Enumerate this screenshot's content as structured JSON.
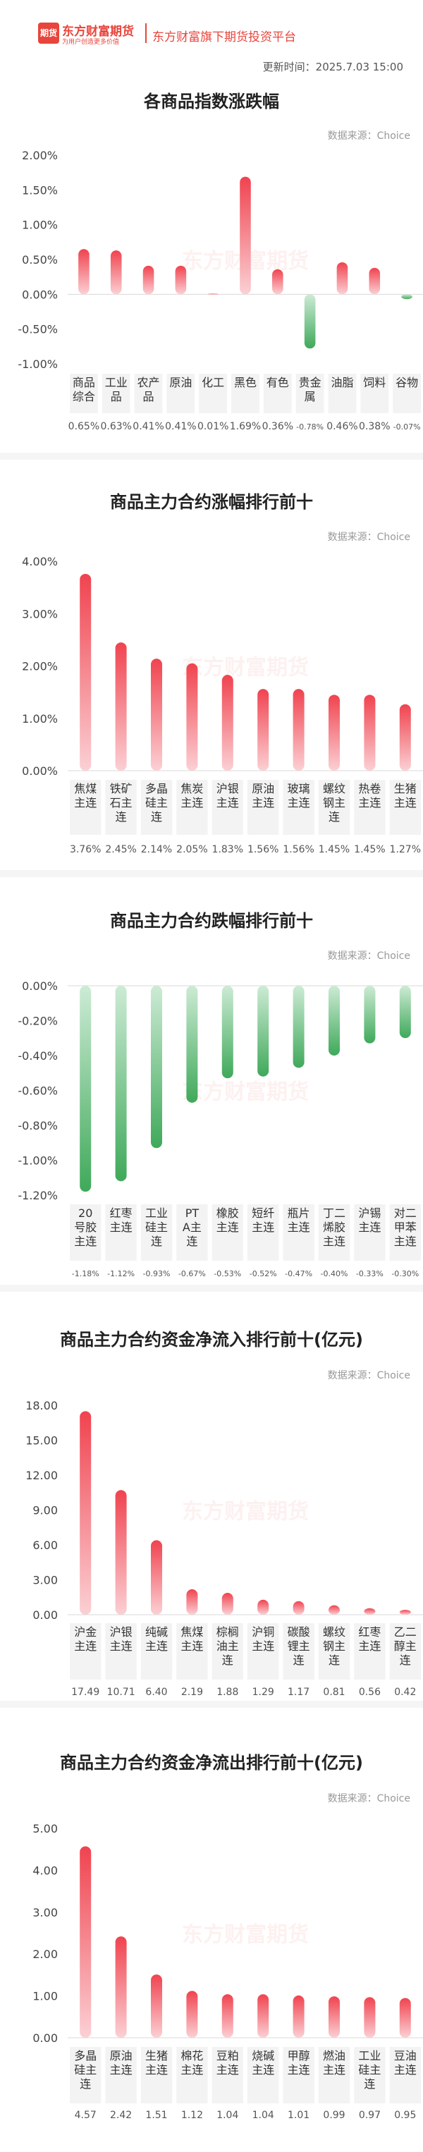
{
  "header": {
    "logo_text": "期货",
    "brand": "东方财富期货",
    "brand_sub": "为用户创造更多价值",
    "platform": "东方财富旗下期货投资平台",
    "updated": "更新时间：2025.7.03 15:00"
  },
  "colors": {
    "up": "#f0434f",
    "down": "#3fa95a",
    "label_bg": "#f3f3f3"
  },
  "chart_data": [
    {
      "type": "bar",
      "title": "各商品指数涨跌幅",
      "source": "数据来源：Choice",
      "watermark": "东方财富期货",
      "categories": [
        "商品综合",
        "工业品",
        "农产品",
        "原油",
        "化工",
        "黑色",
        "有色",
        "贵金属",
        "油脂",
        "饲料",
        "谷物"
      ],
      "value_labels": [
        "0.65%",
        "0.63%",
        "0.41%",
        "0.41%",
        "0.01%",
        "1.69%",
        "0.36%",
        "-0.78%",
        "0.46%",
        "0.38%",
        "-0.07%"
      ],
      "values": [
        0.65,
        0.63,
        0.41,
        0.41,
        0.01,
        1.69,
        0.36,
        -0.78,
        0.46,
        0.38,
        -0.07
      ],
      "ylim": [
        -1.0,
        2.0
      ],
      "yticks": [
        2.0,
        1.5,
        1.0,
        0.5,
        0.0,
        -0.5,
        -1.0
      ],
      "ytick_labels": [
        "2.00%",
        "1.50%",
        "1.00%",
        "0.50%",
        "0.00%",
        "-0.50%",
        "-1.00%"
      ],
      "grid": false
    },
    {
      "type": "bar",
      "title": "商品主力合约涨幅排行前十",
      "source": "数据来源：Choice",
      "watermark": "东方财富期货",
      "categories": [
        "焦煤主连",
        "铁矿石主连",
        "多晶硅主连",
        "焦炭主连",
        "沪银主连",
        "原油主连",
        "玻璃主连",
        "螺纹钢主连",
        "热卷主连",
        "生猪主连"
      ],
      "value_labels": [
        "3.76%",
        "2.45%",
        "2.14%",
        "2.05%",
        "1.83%",
        "1.56%",
        "1.56%",
        "1.45%",
        "1.45%",
        "1.27%"
      ],
      "values": [
        3.76,
        2.45,
        2.14,
        2.05,
        1.83,
        1.56,
        1.56,
        1.45,
        1.45,
        1.27
      ],
      "ylim": [
        0,
        4.0
      ],
      "yticks": [
        4.0,
        3.0,
        2.0,
        1.0,
        0.0
      ],
      "ytick_labels": [
        "4.00%",
        "3.00%",
        "2.00%",
        "1.00%",
        "0.00%"
      ],
      "grid": false
    },
    {
      "type": "bar",
      "title": "商品主力合约跌幅排行前十",
      "source": "数据来源：Choice",
      "watermark": "东方财富期货",
      "categories": [
        "20号胶主连",
        "红枣主连",
        "工业硅主连",
        "PTA主连",
        "橡胶主连",
        "短纤主连",
        "瓶片主连",
        "丁二烯胶主连",
        "沪锡主连",
        "对二甲苯主连"
      ],
      "value_labels": [
        "-1.18%",
        "-1.12%",
        "-0.93%",
        "-0.67%",
        "-0.53%",
        "-0.52%",
        "-0.47%",
        "-0.40%",
        "-0.33%",
        "-0.30%"
      ],
      "values": [
        -1.18,
        -1.12,
        -0.93,
        -0.67,
        -0.53,
        -0.52,
        -0.47,
        -0.4,
        -0.33,
        -0.3
      ],
      "ylim": [
        -1.2,
        0
      ],
      "yticks": [
        0,
        -0.2,
        -0.4,
        -0.6,
        -0.8,
        -1.0,
        -1.2
      ],
      "ytick_labels": [
        "0.00%",
        "-0.20%",
        "-0.40%",
        "-0.60%",
        "-0.80%",
        "-1.00%",
        "-1.20%"
      ],
      "grid": false
    },
    {
      "type": "bar",
      "title": "商品主力合约资金净流入排行前十(亿元)",
      "source": "数据来源：Choice",
      "watermark": "东方财富期货",
      "categories": [
        "沪金主连",
        "沪银主连",
        "纯碱主连",
        "焦煤主连",
        "棕榈油主连",
        "沪铜主连",
        "碳酸锂主连",
        "螺纹钢主连",
        "红枣主连",
        "乙二醇主连"
      ],
      "value_labels": [
        "17.49",
        "10.71",
        "6.40",
        "2.19",
        "1.88",
        "1.29",
        "1.17",
        "0.81",
        "0.56",
        "0.42"
      ],
      "values": [
        17.49,
        10.71,
        6.4,
        2.19,
        1.88,
        1.29,
        1.17,
        0.81,
        0.56,
        0.42
      ],
      "ylim": [
        0,
        18.0
      ],
      "yticks": [
        18,
        15,
        12,
        9,
        6,
        3,
        0
      ],
      "ytick_labels": [
        "18.00",
        "15.00",
        "12.00",
        "9.00",
        "6.00",
        "3.00",
        "0.00"
      ],
      "grid": false
    },
    {
      "type": "bar",
      "title": "商品主力合约资金净流出排行前十(亿元)",
      "source": "数据来源：Choice",
      "watermark": "东方财富期货",
      "categories": [
        "多晶硅主连",
        "原油主连",
        "生猪主连",
        "棉花主连",
        "豆粕主连",
        "烧碱主连",
        "甲醇主连",
        "燃油主连",
        "工业硅主连",
        "豆油主连"
      ],
      "value_labels": [
        "4.57",
        "2.42",
        "1.51",
        "1.12",
        "1.04",
        "1.04",
        "1.01",
        "0.99",
        "0.97",
        "0.95"
      ],
      "values": [
        4.57,
        2.42,
        1.51,
        1.12,
        1.04,
        1.04,
        1.01,
        0.99,
        0.97,
        0.95
      ],
      "ylim": [
        0,
        5.0
      ],
      "yticks": [
        5,
        4,
        3,
        2,
        1,
        0
      ],
      "ytick_labels": [
        "5.00",
        "4.00",
        "3.00",
        "2.00",
        "1.00",
        "0.00"
      ],
      "grid": false
    }
  ]
}
